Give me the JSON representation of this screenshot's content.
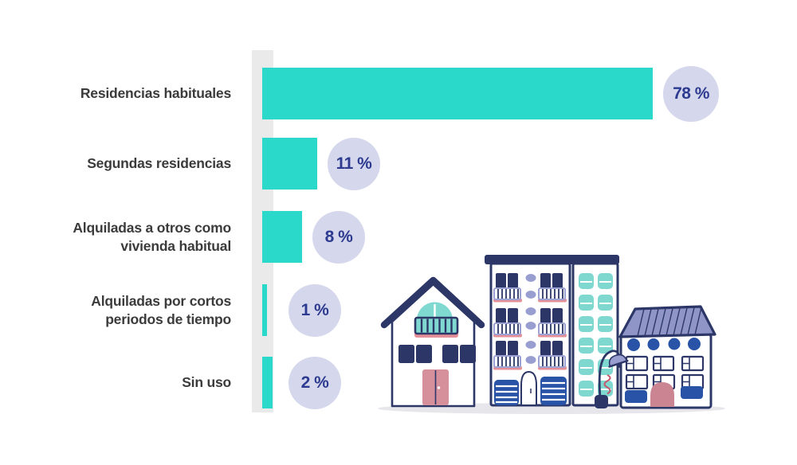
{
  "chart_data": {
    "type": "bar",
    "orientation": "horizontal",
    "title": "",
    "categories": [
      "Residencias habituales",
      "Segundas residencias",
      "Alquiladas a otros como vivienda habitual",
      "Alquiladas por cortos periodos de tiempo",
      "Sin uso"
    ],
    "values": [
      78,
      11,
      8,
      1,
      2
    ],
    "value_labels": [
      "78 %",
      "11 %",
      "8 %",
      "1 %",
      "2 %"
    ],
    "unit": "%",
    "xlim": [
      0,
      100
    ],
    "grid": false,
    "legend": "none",
    "bar_color": "#2BD9CA",
    "axis_band_color": "#EAEAEA",
    "bubble_color": "#D5D7EC",
    "bubble_text_color": "#2C3A90",
    "label_text_color": "#3B3B3B"
  },
  "illustration": {
    "name": "buildings-street-illustration",
    "palette": {
      "navy": "#2C3768",
      "royal_blue": "#2853A6",
      "light_teal": "#7FD9D1",
      "lavender": "#999ED1",
      "dusty_pink": "#D6909C",
      "coil_red": "#C4556A",
      "shadow": "#E6E6EB"
    }
  }
}
